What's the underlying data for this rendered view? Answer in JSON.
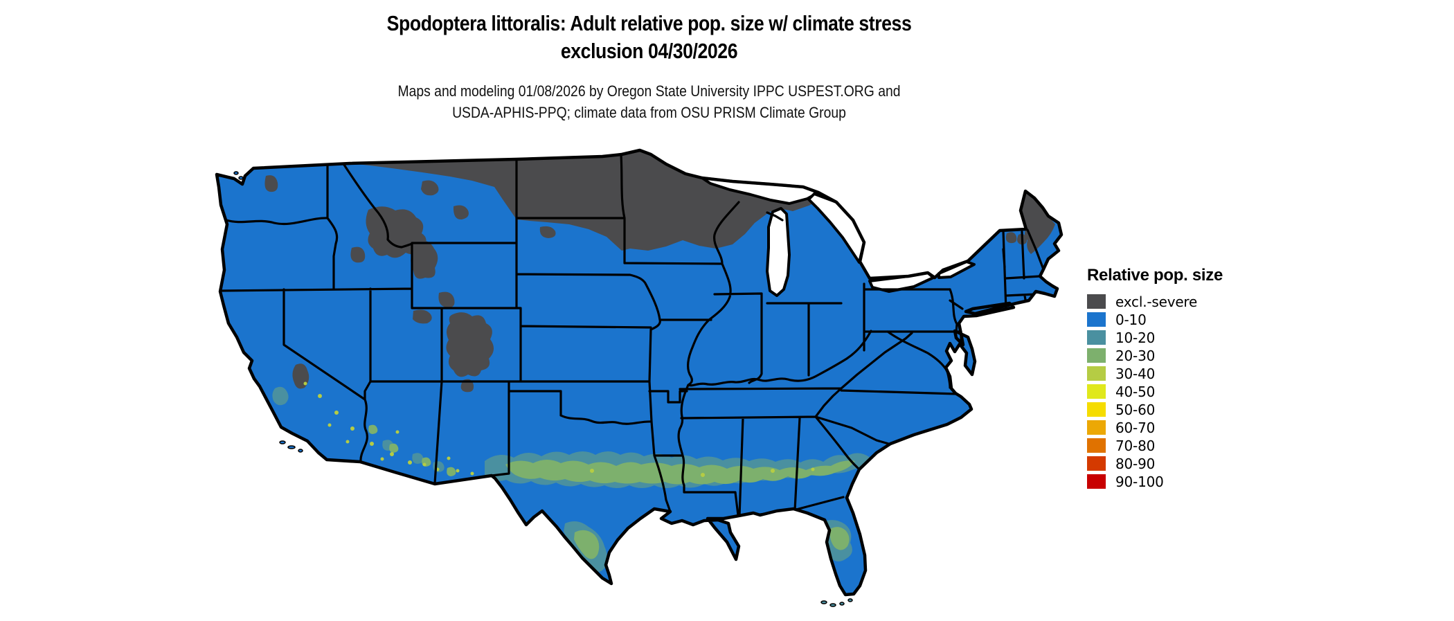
{
  "header": {
    "title_line1": "Spodoptera littoralis: Adult relative pop. size w/ climate stress",
    "title_line2": "exclusion 04/30/2026",
    "subtitle_line1": "Maps and modeling 01/08/2026 by Oregon State University IPPC USPEST.ORG and",
    "subtitle_line2": "USDA-APHIS-PPQ; climate data from OSU PRISM Climate Group"
  },
  "legend": {
    "title": "Relative pop. size",
    "items": [
      {
        "label": "excl.-severe",
        "color": "#4b4b4d"
      },
      {
        "label": "0-10",
        "color": "#1b74cd"
      },
      {
        "label": "10-20",
        "color": "#4a90a0"
      },
      {
        "label": "20-30",
        "color": "#7db06d"
      },
      {
        "label": "30-40",
        "color": "#b5cc44"
      },
      {
        "label": "40-50",
        "color": "#e0e81c"
      },
      {
        "label": "50-60",
        "color": "#f5dc00"
      },
      {
        "label": "60-70",
        "color": "#eca805"
      },
      {
        "label": "70-80",
        "color": "#e07200"
      },
      {
        "label": "80-90",
        "color": "#d43a00"
      },
      {
        "label": "90-100",
        "color": "#c80000"
      }
    ]
  },
  "map": {
    "type": "choropleth-raster",
    "area": "conterminous United States",
    "date_shown": "04/30/2026",
    "border_color": "#000000",
    "water_color": "#ffffff",
    "classes_visible": {
      "excl_severe_regions": "North Dakota, Minnesota, northern Wisconsin, upper Michigan, northeastern Montana, Rocky Mountains (ID/MT/WY/CO/UT), Sierra Nevada, Adirondacks, northern New England, most of Maine",
      "band_10_30_regions": "central/southern Texas, Louisiana, Mississippi, Alabama, Georgia, coastal South Carolina, central Florida, southeastern Arizona and southwestern New Mexico",
      "base_0_10_regions": "remainder of the conterminous United States"
    }
  }
}
